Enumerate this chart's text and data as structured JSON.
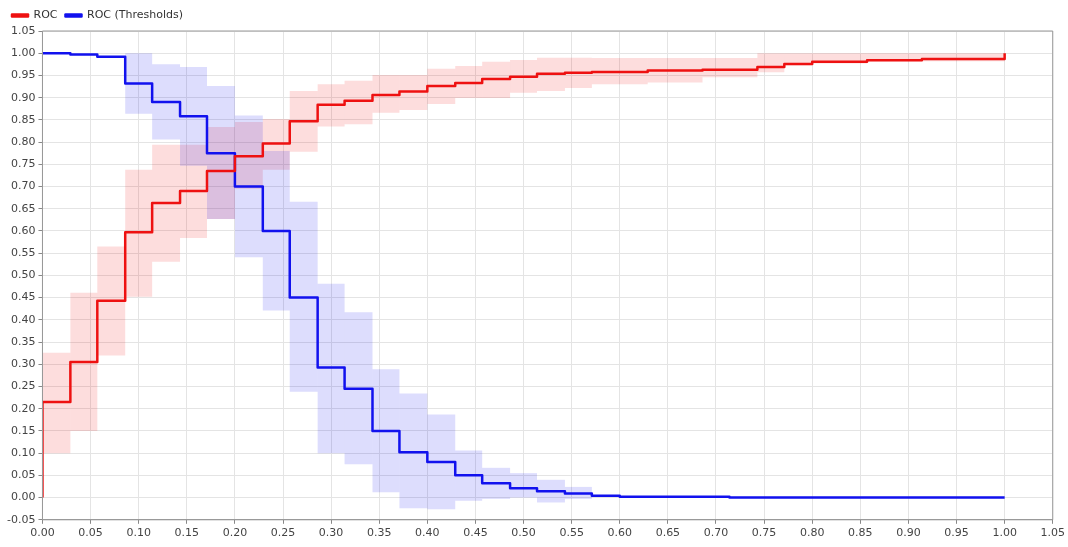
{
  "chart_data": {
    "type": "step",
    "legend": "top left",
    "grid": true,
    "marker": "none",
    "line_style": "solid",
    "xlim": [
      0,
      1.05
    ],
    "ylim": [
      -0.05,
      1.05
    ],
    "xticks": [
      {
        "value": 0,
        "label": "0.00"
      },
      {
        "value": 0.05,
        "label": "0.05"
      },
      {
        "value": 0.1,
        "label": "0.10"
      },
      {
        "value": 0.15,
        "label": "0.15"
      },
      {
        "value": 0.2,
        "label": "0.20"
      },
      {
        "value": 0.25,
        "label": "0.25"
      },
      {
        "value": 0.3,
        "label": "0.30"
      },
      {
        "value": 0.35,
        "label": "0.35"
      },
      {
        "value": 0.4,
        "label": "0.40"
      },
      {
        "value": 0.45,
        "label": "0.45"
      },
      {
        "value": 0.5,
        "label": "0.50"
      },
      {
        "value": 0.55,
        "label": "0.55"
      },
      {
        "value": 0.6,
        "label": "0.60"
      },
      {
        "value": 0.65,
        "label": "0.65"
      },
      {
        "value": 0.7,
        "label": "0.70"
      },
      {
        "value": 0.75,
        "label": "0.75"
      },
      {
        "value": 0.8,
        "label": "0.80"
      },
      {
        "value": 0.85,
        "label": "0.85"
      },
      {
        "value": 0.9,
        "label": "0.90"
      },
      {
        "value": 0.95,
        "label": "0.95"
      },
      {
        "value": 1,
        "label": "1.00"
      },
      {
        "value": 1.05,
        "label": "1.05"
      }
    ],
    "yticks": [
      {
        "value": -0.05,
        "label": "-0.05"
      },
      {
        "value": 0,
        "label": "0.00"
      },
      {
        "value": 0.05,
        "label": "0.05"
      },
      {
        "value": 0.1,
        "label": "0.10"
      },
      {
        "value": 0.15,
        "label": "0.15"
      },
      {
        "value": 0.2,
        "label": "0.20"
      },
      {
        "value": 0.25,
        "label": "0.25"
      },
      {
        "value": 0.3,
        "label": "0.30"
      },
      {
        "value": 0.35,
        "label": "0.35"
      },
      {
        "value": 0.4,
        "label": "0.40"
      },
      {
        "value": 0.45,
        "label": "0.45"
      },
      {
        "value": 0.5,
        "label": "0.50"
      },
      {
        "value": 0.55,
        "label": "0.55"
      },
      {
        "value": 0.6,
        "label": "0.60"
      },
      {
        "value": 0.65,
        "label": "0.65"
      },
      {
        "value": 0.7,
        "label": "0.70"
      },
      {
        "value": 0.75,
        "label": "0.75"
      },
      {
        "value": 0.8,
        "label": "0.80"
      },
      {
        "value": 0.85,
        "label": "0.85"
      },
      {
        "value": 0.9,
        "label": "0.90"
      },
      {
        "value": 0.95,
        "label": "0.95"
      },
      {
        "value": 1,
        "label": "1.00"
      },
      {
        "value": 1.05,
        "label": "1.05"
      }
    ],
    "series": [
      {
        "name": "ROC",
        "color": "#ee1111",
        "x": [
          0,
          0,
          0.029,
          0.057,
          0.086,
          0.114,
          0.143,
          0.171,
          0.2,
          0.229,
          0.257,
          0.286,
          0.314,
          0.343,
          0.371,
          0.4,
          0.429,
          0.457,
          0.486,
          0.514,
          0.543,
          0.571,
          0.629,
          0.686,
          0.743,
          0.771,
          0.8,
          0.857,
          0.914,
          1.0
        ],
        "values": [
          0,
          0.215,
          0.305,
          0.443,
          0.597,
          0.663,
          0.69,
          0.735,
          0.768,
          0.797,
          0.847,
          0.884,
          0.893,
          0.906,
          0.914,
          0.926,
          0.933,
          0.942,
          0.947,
          0.954,
          0.956,
          0.958,
          0.961,
          0.963,
          0.969,
          0.976,
          0.981,
          0.984,
          0.987,
          1.0
        ],
        "lower": [
          null,
          0.1,
          0.15,
          0.32,
          0.452,
          0.531,
          0.584,
          0.627,
          0.695,
          0.738,
          0.778,
          0.835,
          0.84,
          0.866,
          0.872,
          0.886,
          0.899,
          0.899,
          0.911,
          0.915,
          0.922,
          0.93,
          0.934,
          0.946,
          0.957,
          0.973,
          0.977,
          0.982,
          0.982,
          0.982
        ],
        "upper": [
          null,
          0.326,
          0.461,
          0.565,
          0.738,
          0.794,
          0.794,
          0.834,
          0.845,
          0.852,
          0.915,
          0.93,
          0.938,
          0.951,
          0.951,
          0.965,
          0.971,
          0.981,
          0.985,
          0.99,
          0.99,
          0.989,
          0.989,
          0.989,
          1.0,
          1.0,
          1.0,
          1.0,
          1.0,
          1.0
        ]
      },
      {
        "name": "ROC (Thresholds)",
        "color": "#1111ee",
        "x": [
          0,
          0.029,
          0.057,
          0.086,
          0.114,
          0.143,
          0.171,
          0.2,
          0.229,
          0.257,
          0.286,
          0.314,
          0.343,
          0.371,
          0.4,
          0.429,
          0.457,
          0.486,
          0.514,
          0.543,
          0.571,
          0.6,
          0.714,
          1.0
        ],
        "values": [
          1.0,
          0.997,
          0.992,
          0.932,
          0.89,
          0.858,
          0.775,
          0.7,
          0.6,
          0.45,
          0.293,
          0.245,
          0.15,
          0.102,
          0.08,
          0.05,
          0.032,
          0.021,
          0.014,
          0.009,
          0.004,
          0.002,
          0,
          0
        ],
        "lower": [
          null,
          null,
          null,
          0.864,
          0.806,
          0.747,
          0.627,
          0.541,
          0.421,
          0.238,
          0.1,
          0.075,
          0.012,
          -0.024,
          -0.026,
          -0.007,
          -0.003,
          0.0,
          -0.011,
          -0.003,
          -0.003,
          null,
          null,
          null
        ],
        "upper": [
          null,
          null,
          null,
          1.0,
          0.975,
          0.969,
          0.926,
          0.86,
          0.78,
          0.666,
          0.481,
          0.417,
          0.289,
          0.234,
          0.187,
          0.106,
          0.067,
          0.055,
          0.04,
          0.024,
          0.024,
          null,
          null,
          null
        ]
      }
    ]
  }
}
